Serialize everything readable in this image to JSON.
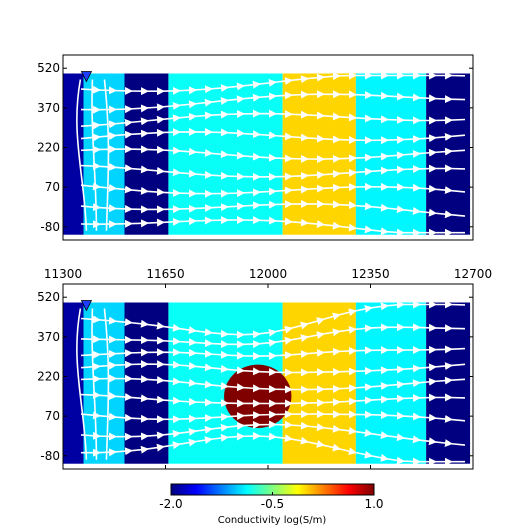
{
  "colorbar": {
    "label": "Conductivity log(S/m)",
    "ticks": [
      "-2.0",
      "-0.5",
      "1.0"
    ],
    "range": [
      -2.0,
      1.0
    ]
  },
  "chart_data": [
    {
      "type": "heatmap",
      "panel": "top",
      "xlim": [
        11300,
        12700
      ],
      "ylim": [
        -130,
        570
      ],
      "x_data_range": [
        11300,
        12690
      ],
      "y_data_range": [
        -110,
        500
      ],
      "yticks": [
        -80,
        70,
        220,
        370,
        520
      ],
      "ytick_labels": [
        "-80",
        "70",
        "220",
        "370",
        "520"
      ],
      "xticks": [],
      "xtick_labels": [],
      "source_marker_x": 11380,
      "layers": [
        {
          "x_start": 11300,
          "x_end": 11370,
          "log_sigma": -1.9
        },
        {
          "x_start": 11370,
          "x_end": 11510,
          "log_sigma": -1.0
        },
        {
          "x_start": 11510,
          "x_end": 11660,
          "log_sigma": -2.0
        },
        {
          "x_start": 11660,
          "x_end": 12050,
          "log_sigma": -0.85
        },
        {
          "x_start": 12050,
          "x_end": 12300,
          "log_sigma": 0.0
        },
        {
          "x_start": 12300,
          "x_end": 12540,
          "log_sigma": -0.9
        },
        {
          "x_start": 12540,
          "x_end": 12690,
          "log_sigma": -2.0
        }
      ],
      "anomaly": null
    },
    {
      "type": "heatmap",
      "panel": "bottom",
      "xlim": [
        11300,
        12700
      ],
      "ylim": [
        -130,
        570
      ],
      "x_data_range": [
        11300,
        12690
      ],
      "y_data_range": [
        -110,
        500
      ],
      "yticks": [
        -80,
        70,
        220,
        370,
        520
      ],
      "ytick_labels": [
        "-80",
        "70",
        "220",
        "370",
        "520"
      ],
      "xticks": [
        11300,
        11650,
        12000,
        12350,
        12700
      ],
      "xtick_labels": [
        "11300",
        "11650",
        "12000",
        "12350",
        "12700"
      ],
      "source_marker_x": 11380,
      "layers": [
        {
          "x_start": 11300,
          "x_end": 11370,
          "log_sigma": -1.9
        },
        {
          "x_start": 11370,
          "x_end": 11510,
          "log_sigma": -1.0
        },
        {
          "x_start": 11510,
          "x_end": 11660,
          "log_sigma": -2.0
        },
        {
          "x_start": 11660,
          "x_end": 12050,
          "log_sigma": -0.85
        },
        {
          "x_start": 12050,
          "x_end": 12300,
          "log_sigma": 0.0
        },
        {
          "x_start": 12300,
          "x_end": 12540,
          "log_sigma": -0.9
        },
        {
          "x_start": 12540,
          "x_end": 12690,
          "log_sigma": -2.0
        }
      ],
      "anomaly": {
        "x_center": 11965,
        "y_center": 145,
        "x_radius": 115,
        "y_radius": 120,
        "log_sigma": 1.0
      }
    }
  ]
}
